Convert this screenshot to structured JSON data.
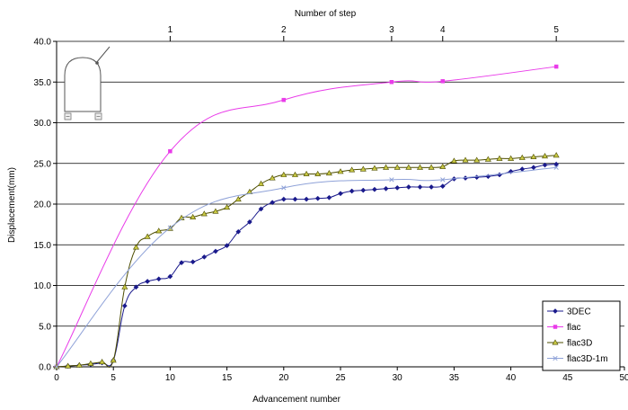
{
  "chart_data": {
    "type": "line",
    "title": "",
    "xlabel": "Advancement number",
    "ylabel": "Displacement(mm)",
    "top_axis_label": "Number of step",
    "xlim": [
      0,
      50
    ],
    "ylim": [
      0,
      40
    ],
    "x_ticks": [
      0,
      5,
      10,
      15,
      20,
      25,
      30,
      35,
      40,
      45,
      50
    ],
    "y_ticks": [
      "0.0",
      "5.0",
      "10.0",
      "15.0",
      "20.0",
      "25.0",
      "30.0",
      "35.0",
      "40.0"
    ],
    "top_ticks": [
      {
        "label": "1",
        "x": 10
      },
      {
        "label": "2",
        "x": 20
      },
      {
        "label": "3",
        "x": 29.5
      },
      {
        "label": "4",
        "x": 34
      },
      {
        "label": "5",
        "x": 44
      }
    ],
    "grid": "horizontal",
    "legend_position": "bottom-right",
    "series": [
      {
        "name": "3DEC",
        "color": "#1a1a8c",
        "marker": "diamond",
        "x": [
          0,
          1,
          2,
          3,
          4,
          5,
          6,
          7,
          8,
          9,
          10,
          11,
          12,
          13,
          14,
          15,
          16,
          17,
          18,
          19,
          20,
          21,
          22,
          23,
          24,
          25,
          26,
          27,
          28,
          29,
          30,
          31,
          32,
          33,
          34,
          35,
          36,
          37,
          38,
          39,
          40,
          41,
          42,
          43,
          44
        ],
        "y": [
          0.0,
          0.1,
          0.2,
          0.3,
          0.5,
          0.8,
          7.5,
          9.8,
          10.5,
          10.8,
          11.1,
          12.8,
          12.9,
          13.5,
          14.2,
          14.9,
          16.6,
          17.8,
          19.4,
          20.2,
          20.6,
          20.6,
          20.6,
          20.7,
          20.8,
          21.3,
          21.6,
          21.7,
          21.8,
          21.9,
          22.0,
          22.1,
          22.1,
          22.1,
          22.2,
          23.1,
          23.2,
          23.3,
          23.4,
          23.6,
          24.0,
          24.3,
          24.5,
          24.8,
          24.9
        ]
      },
      {
        "name": "flac",
        "color": "#e93be9",
        "marker": "square",
        "x": [
          0,
          10,
          20,
          29.5,
          34,
          44
        ],
        "y": [
          0.0,
          26.5,
          32.8,
          35.0,
          35.1,
          36.9
        ]
      },
      {
        "name": "flac3D",
        "color": "#4d4d00",
        "marker_fill": "#c8c844",
        "marker": "triangle",
        "x": [
          0,
          1,
          2,
          3,
          4,
          5,
          6,
          7,
          8,
          9,
          10,
          11,
          12,
          13,
          14,
          15,
          16,
          17,
          18,
          19,
          20,
          21,
          22,
          23,
          24,
          25,
          26,
          27,
          28,
          29,
          30,
          31,
          32,
          33,
          34,
          35,
          36,
          37,
          38,
          39,
          40,
          41,
          42,
          43,
          44
        ],
        "y": [
          0.0,
          0.1,
          0.2,
          0.4,
          0.6,
          0.8,
          9.8,
          14.7,
          16.0,
          16.7,
          17.0,
          18.3,
          18.4,
          18.8,
          19.1,
          19.6,
          20.6,
          21.5,
          22.5,
          23.2,
          23.6,
          23.6,
          23.7,
          23.7,
          23.8,
          24.0,
          24.2,
          24.3,
          24.4,
          24.5,
          24.5,
          24.5,
          24.5,
          24.5,
          24.6,
          25.3,
          25.4,
          25.4,
          25.5,
          25.6,
          25.6,
          25.7,
          25.8,
          25.9,
          26.0
        ]
      },
      {
        "name": "flac3D-1m",
        "color": "#8fa2d8",
        "marker": "x",
        "x": [
          0,
          10,
          20,
          29.5,
          34,
          44
        ],
        "y": [
          0.0,
          17.1,
          22.0,
          23.0,
          23.0,
          24.5
        ]
      }
    ]
  }
}
